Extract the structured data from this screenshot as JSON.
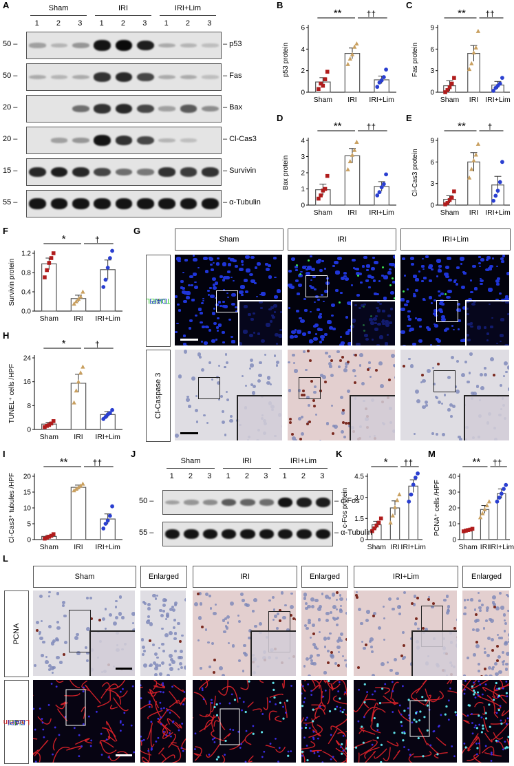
{
  "panels": {
    "A": "A",
    "B": "B",
    "C": "C",
    "D": "D",
    "E": "E",
    "F": "F",
    "G": "G",
    "H": "H",
    "I": "I",
    "J": "J",
    "K": "K",
    "L": "L",
    "M": "M"
  },
  "blotA": {
    "groups": [
      "Sham",
      "IRI",
      "IRI+Lim"
    ],
    "lanes": [
      "1",
      "2",
      "3",
      "1",
      "2",
      "3",
      "1",
      "2",
      "3"
    ],
    "rows": [
      {
        "marker": "50",
        "label": "p53",
        "intensity": [
          0.25,
          0.15,
          0.3,
          0.95,
          1.0,
          0.9,
          0.2,
          0.15,
          0.1
        ]
      },
      {
        "marker": "50",
        "label": "Fas",
        "intensity": [
          0.2,
          0.15,
          0.2,
          0.8,
          0.85,
          0.7,
          0.2,
          0.2,
          0.1
        ]
      },
      {
        "marker": "20",
        "label": "Bax",
        "intensity": [
          0.0,
          0.0,
          0.5,
          0.8,
          0.85,
          0.7,
          0.25,
          0.6,
          0.35
        ]
      },
      {
        "marker": "20",
        "label": "Cl-Cas3",
        "intensity": [
          0.0,
          0.25,
          0.3,
          0.95,
          0.8,
          0.7,
          0.15,
          0.1,
          0.0
        ]
      },
      {
        "marker": "15",
        "label": "Survivin",
        "intensity": [
          0.85,
          0.9,
          0.85,
          0.7,
          0.5,
          0.45,
          0.8,
          0.75,
          0.8
        ]
      },
      {
        "marker": "55",
        "label": "α-Tubulin",
        "intensity": [
          0.95,
          0.95,
          0.95,
          0.95,
          0.95,
          0.95,
          0.95,
          0.95,
          0.95
        ]
      }
    ]
  },
  "chart_data": [
    {
      "id": "B",
      "type": "bar",
      "categories": [
        "Sham",
        "IRI",
        "IRI+Lim"
      ],
      "values": [
        0.95,
        3.6,
        1.15
      ],
      "errors": [
        0.4,
        0.5,
        0.35
      ],
      "points": [
        [
          0.3,
          0.8,
          0.6,
          1.2,
          1.9
        ],
        [
          2.6,
          3.1,
          3.5,
          4.2,
          4.5
        ],
        [
          0.5,
          0.9,
          1.1,
          1.4,
          2.1
        ]
      ],
      "ylabel": "p53 protein",
      "ylim": [
        0,
        6
      ],
      "yticks": [
        0,
        2,
        4,
        6
      ],
      "sig": [
        "**",
        "††"
      ]
    },
    {
      "id": "C",
      "type": "bar",
      "categories": [
        "Sham",
        "IRI",
        "IRI+Lim"
      ],
      "values": [
        0.9,
        5.4,
        1.0
      ],
      "errors": [
        0.7,
        1.1,
        0.5
      ],
      "points": [
        [
          0.0,
          0.3,
          0.7,
          1.2,
          2.0
        ],
        [
          3.2,
          4.0,
          5.5,
          6.2,
          8.5
        ],
        [
          0.2,
          0.6,
          0.9,
          1.2,
          2.0
        ]
      ],
      "ylabel": "Fas protein",
      "ylim": [
        0,
        9
      ],
      "yticks": [
        0,
        3,
        6,
        9
      ],
      "sig": [
        "**",
        "††"
      ]
    },
    {
      "id": "D",
      "type": "bar",
      "categories": [
        "Sham",
        "IRI",
        "IRI+Lim"
      ],
      "values": [
        0.95,
        3.05,
        1.15
      ],
      "errors": [
        0.35,
        0.45,
        0.3
      ],
      "points": [
        [
          0.4,
          0.6,
          0.9,
          1.0,
          1.8
        ],
        [
          2.2,
          2.7,
          3.1,
          3.4,
          3.9
        ],
        [
          0.6,
          0.8,
          1.1,
          1.3,
          1.9
        ]
      ],
      "ylabel": "Bax protein",
      "ylim": [
        0,
        4
      ],
      "yticks": [
        0,
        1,
        2,
        3,
        4
      ],
      "sig": [
        "**",
        "††"
      ]
    },
    {
      "id": "E",
      "type": "bar",
      "categories": [
        "Sham",
        "IRI",
        "IRI+Lim"
      ],
      "values": [
        0.8,
        6.0,
        2.8
      ],
      "errors": [
        0.5,
        1.3,
        1.2
      ],
      "points": [
        [
          0.1,
          0.3,
          0.7,
          1.0,
          1.9
        ],
        [
          3.8,
          5.0,
          6.2,
          7.0,
          8.5
        ],
        [
          0.6,
          1.3,
          2.0,
          3.2,
          6.0
        ]
      ],
      "ylabel": "Cl-Cas3 protein",
      "ylim": [
        0,
        9
      ],
      "yticks": [
        0,
        3,
        6,
        9
      ],
      "sig": [
        "**",
        "†"
      ]
    },
    {
      "id": "F",
      "type": "bar",
      "categories": [
        "Sham",
        "IRI",
        "IRI+Lim"
      ],
      "values": [
        0.98,
        0.26,
        0.86
      ],
      "errors": [
        0.12,
        0.07,
        0.2
      ],
      "points": [
        [
          0.7,
          0.85,
          1.0,
          1.1,
          1.2
        ],
        [
          0.15,
          0.2,
          0.25,
          0.3,
          0.4
        ],
        [
          0.5,
          0.65,
          0.9,
          1.1,
          1.25
        ]
      ],
      "ylabel": "Survivin protein",
      "ylim": [
        0,
        1.2
      ],
      "yticks": [
        0,
        0.4,
        0.8,
        1.2
      ],
      "yticklabels": [
        "0.0",
        "0.4",
        "0.8",
        "1.2"
      ],
      "sig": [
        "*",
        "†"
      ]
    },
    {
      "id": "H",
      "type": "bar",
      "categories": [
        "Sham",
        "IRI",
        "IRI+Lim"
      ],
      "values": [
        1.8,
        15.5,
        5.0
      ],
      "errors": [
        0.6,
        3.0,
        1.0
      ],
      "points": [
        [
          0.8,
          1.2,
          1.5,
          2.0,
          2.8
        ],
        [
          9.0,
          13.0,
          16.0,
          19.0,
          21.0
        ],
        [
          3.5,
          4.2,
          5.0,
          5.5,
          6.5
        ]
      ],
      "ylabel": "TUNEL⁺ cells /HPF",
      "ylim": [
        0,
        24
      ],
      "yticks": [
        0,
        8,
        16,
        24
      ],
      "sig": [
        "*",
        "†"
      ]
    },
    {
      "id": "I",
      "type": "bar",
      "categories": [
        "Sham",
        "IRI",
        "IRI+Lim"
      ],
      "values": [
        1.0,
        16.5,
        6.5
      ],
      "errors": [
        0.4,
        0.7,
        1.6
      ],
      "points": [
        [
          0.3,
          0.6,
          0.9,
          1.2,
          1.7
        ],
        [
          15.5,
          16.0,
          16.5,
          17.0,
          17.6
        ],
        [
          3.5,
          5.0,
          6.0,
          7.5,
          10.5
        ]
      ],
      "ylabel": "Cl-Cas3⁺ tubules /HPF",
      "ylim": [
        0,
        20
      ],
      "yticks": [
        0,
        5,
        10,
        15,
        20
      ],
      "sig": [
        "**",
        "††"
      ]
    },
    {
      "id": "K",
      "type": "bar",
      "categories": [
        "Sham",
        "IRI",
        "IRI+Lim"
      ],
      "values": [
        1.05,
        2.25,
        3.8
      ],
      "errors": [
        0.25,
        0.5,
        0.45
      ],
      "points": [
        [
          0.6,
          0.8,
          1.0,
          1.2,
          1.5
        ],
        [
          1.2,
          1.7,
          2.3,
          2.8,
          3.2
        ],
        [
          2.7,
          3.2,
          3.9,
          4.4,
          4.7
        ]
      ],
      "ylabel": "c-Fos protein",
      "ylim": [
        0,
        4.5
      ],
      "yticks": [
        0,
        1.5,
        3,
        4.5
      ],
      "yticklabels": [
        "0",
        "1.5",
        "3.0",
        "4.5"
      ],
      "sig": [
        "*",
        "††"
      ]
    },
    {
      "id": "M",
      "type": "bar",
      "categories": [
        "Sham",
        "IRI",
        "IRI+Lim"
      ],
      "values": [
        6.0,
        19.0,
        29.0
      ],
      "errors": [
        0.6,
        2.5,
        3.0
      ],
      "points": [
        [
          5.2,
          5.6,
          6.0,
          6.3,
          6.8
        ],
        [
          14.0,
          16.5,
          19.0,
          21.5,
          24.0
        ],
        [
          24.0,
          26.5,
          29.0,
          32.0,
          34.5
        ]
      ],
      "ylabel": "PCNA⁺ cells /HPF",
      "ylim": [
        0,
        40
      ],
      "yticks": [
        0,
        10,
        20,
        30,
        40
      ],
      "sig": [
        "**",
        "††"
      ]
    }
  ],
  "panelG": {
    "columns": [
      "Sham",
      "IRI",
      "IRI+Lim"
    ],
    "row1_label_a": "TUNEL",
    "row1_label_sep": " / ",
    "row1_label_b": "DAPI",
    "row2_label": "Cl-Caspase 3"
  },
  "blotJ": {
    "groups": [
      "Sham",
      "IRI",
      "IRI+Lim"
    ],
    "lanes": [
      "1",
      "2",
      "3",
      "1",
      "2",
      "3",
      "1",
      "2",
      "3"
    ],
    "rows": [
      {
        "marker": "50",
        "label": "c-Fos",
        "intensity": [
          0.25,
          0.3,
          0.35,
          0.6,
          0.55,
          0.5,
          0.95,
          0.9,
          0.9
        ]
      },
      {
        "marker": "55",
        "label": "α-Tubulin",
        "intensity": [
          0.95,
          0.95,
          0.95,
          0.95,
          0.95,
          0.95,
          0.95,
          0.95,
          0.95
        ]
      }
    ]
  },
  "panelL": {
    "headers": [
      "Sham",
      "Enlarged",
      "IRI",
      "Enlarged",
      "IRI+Lim",
      "Enlarged"
    ],
    "row1_label": "PCNA",
    "row2_label_a": "EdU",
    "row2_label_sep1": " / ",
    "row2_label_b": "Laminin",
    "row2_label_sep2": " / ",
    "row2_label_c": "DAPI"
  },
  "colors": {
    "sham": "#b01c1c",
    "iri": "#c9a060",
    "lim": "#2a3fd0",
    "tunel": "#38c838",
    "dapi": "#2a3fd0",
    "laminin": "#cc2020"
  }
}
